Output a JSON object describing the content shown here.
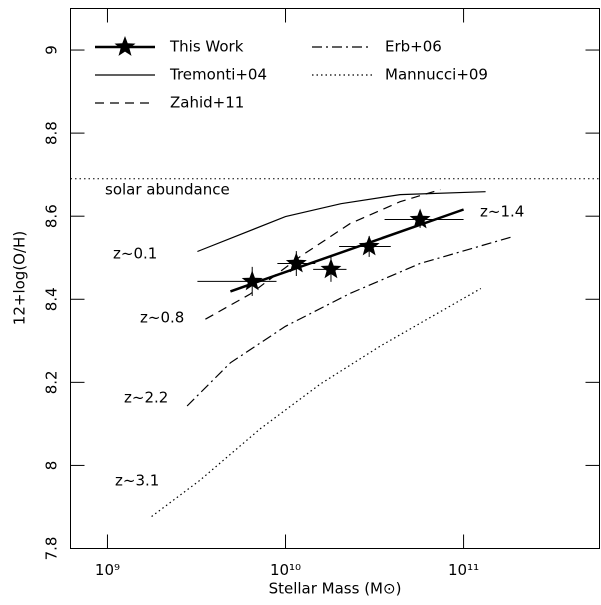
{
  "chart_data": {
    "type": "line",
    "x_label": "Stellar Mass (M⊙)",
    "y_label": "12+log(O/H)",
    "x_scale": "log",
    "xlim": [
      620000000,
      580000000000
    ],
    "ylim": [
      7.8,
      9.1
    ],
    "xticks": [
      {
        "value": 1000000000,
        "label": "10⁹"
      },
      {
        "value": 10000000000,
        "label": "10¹⁰"
      },
      {
        "value": 100000000000,
        "label": "10¹¹"
      }
    ],
    "yticks": [
      7.8,
      8,
      8.2,
      8.4,
      8.6,
      8.8,
      9
    ],
    "solar_abundance": 8.69,
    "annotations": [
      {
        "text": "solar abundance"
      },
      {
        "text": "z~0.1"
      },
      {
        "text": "z~0.8"
      },
      {
        "text": "z~2.2"
      },
      {
        "text": "z~3.1"
      },
      {
        "text": "z~1.4"
      }
    ],
    "series": [
      {
        "name": "This Work",
        "color": "#000000",
        "style": "solid",
        "marker": "star",
        "x": [
          6500000000,
          11500000000,
          18000000000,
          29500000000,
          57000000000
        ],
        "values": [
          8.443,
          8.486,
          8.472,
          8.527,
          8.592
        ],
        "y_err": [
          0.035,
          0.03,
          0.03,
          0.025,
          0.02
        ],
        "x_low": [
          3200000000,
          9000000000,
          14300000000,
          20000000000,
          36000000000
        ],
        "x_high": [
          8900000000,
          14700000000,
          22000000000,
          39000000000,
          100000000000
        ],
        "fit_x": [
          4900000000,
          100000000000
        ],
        "fit_values": [
          8.419,
          8.616
        ]
      },
      {
        "name": "Tremonti+04",
        "color": "#000000",
        "style": "solid",
        "x": [
          3200000000,
          10000000000,
          20500000000,
          44000000000,
          133000000000
        ],
        "values": [
          8.515,
          8.599,
          8.63,
          8.652,
          8.659
        ]
      },
      {
        "name": "Zahid+11",
        "color": "#000000",
        "style": "dashed",
        "x": [
          3550000000,
          6300000000,
          12100000000,
          23000000000,
          44000000000,
          74000000000
        ],
        "values": [
          8.352,
          8.412,
          8.503,
          8.582,
          8.635,
          8.664
        ]
      },
      {
        "name": "Erb+06",
        "color": "#000000",
        "style": "dashdot",
        "x": [
          2800000000,
          4900000000,
          10000000000,
          23000000000,
          57000000000,
          190000000000
        ],
        "values": [
          8.143,
          8.247,
          8.335,
          8.414,
          8.486,
          8.551
        ]
      },
      {
        "name": "Mannucci+09",
        "color": "#000000",
        "style": "dotted",
        "x": [
          1770000000,
          3300000000,
          7200000000,
          15700000000,
          34000000000,
          125000000000
        ],
        "values": [
          7.877,
          7.964,
          8.088,
          8.196,
          8.287,
          8.426
        ]
      }
    ]
  }
}
